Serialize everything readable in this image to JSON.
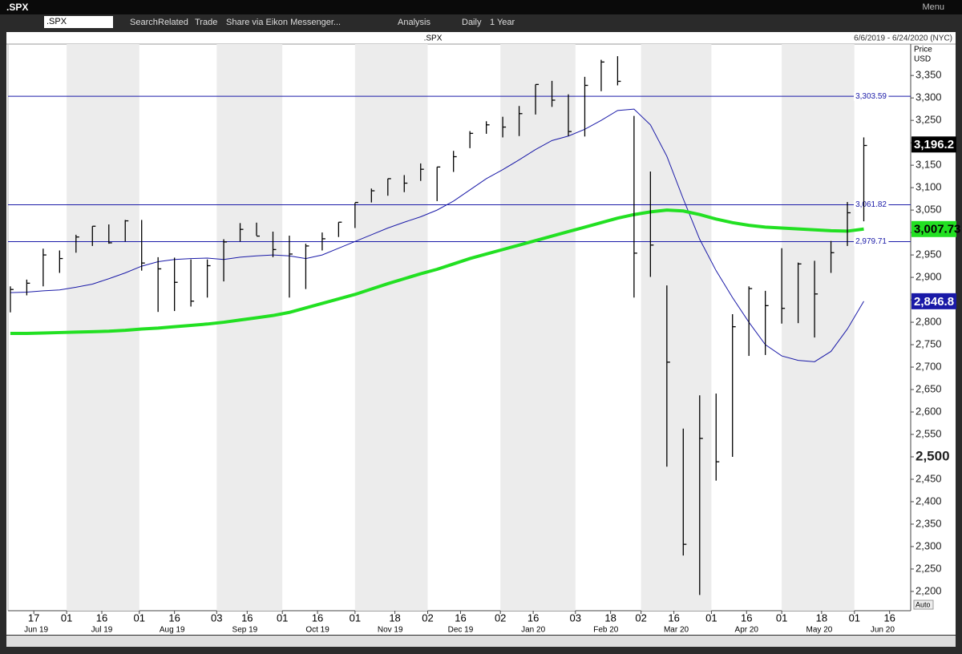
{
  "window": {
    "title": ".SPX",
    "menu": "Menu"
  },
  "toolbar": {
    "symbol": ".SPX",
    "search": "Search",
    "related": "Related",
    "trade": "Trade",
    "share": "Share via Eikon Messenger...",
    "analysis": "Analysis",
    "interval": "Daily",
    "period": "1 Year"
  },
  "chart_data": {
    "type": "ohlc",
    "title": ".SPX",
    "subtitle": "6/6/2019 - 6/24/2020 (NYC)",
    "y_label": "Price",
    "y_unit": "USD",
    "autoscale": "Auto",
    "xlim": [
      "2019-06-06",
      "2020-06-25"
    ],
    "ylim": [
      2157,
      3420
    ],
    "x": [
      "2019-06-07",
      "2019-06-14",
      "2019-06-21",
      "2019-06-28",
      "2019-07-05",
      "2019-07-12",
      "2019-07-19",
      "2019-07-26",
      "2019-08-02",
      "2019-08-09",
      "2019-08-16",
      "2019-08-23",
      "2019-08-30",
      "2019-09-06",
      "2019-09-13",
      "2019-09-20",
      "2019-09-27",
      "2019-10-04",
      "2019-10-11",
      "2019-10-18",
      "2019-10-25",
      "2019-11-01",
      "2019-11-08",
      "2019-11-15",
      "2019-11-22",
      "2019-11-29",
      "2019-12-06",
      "2019-12-13",
      "2019-12-20",
      "2019-12-27",
      "2020-01-03",
      "2020-01-10",
      "2020-01-17",
      "2020-01-24",
      "2020-01-31",
      "2020-02-07",
      "2020-02-14",
      "2020-02-21",
      "2020-02-28",
      "2020-03-06",
      "2020-03-13",
      "2020-03-20",
      "2020-03-27",
      "2020-04-03",
      "2020-04-10",
      "2020-04-17",
      "2020-04-24",
      "2020-05-01",
      "2020-05-08",
      "2020-05-15",
      "2020-05-22",
      "2020-05-29",
      "2020-06-05"
    ],
    "high": [
      2880,
      2895,
      2964,
      2960,
      2995,
      3014,
      3018,
      3028,
      3028,
      2945,
      2944,
      2940,
      2940,
      2985,
      3021,
      3022,
      3002,
      2993,
      2975,
      3000,
      3023,
      3066,
      3098,
      3120,
      3128,
      3154,
      3146,
      3182,
      3226,
      3248,
      3258,
      3282,
      3330,
      3338,
      3308,
      3347,
      3385,
      3393,
      3260,
      3136,
      2882,
      2563,
      2637,
      2641,
      2818,
      2880,
      2870,
      2965,
      2933,
      2937,
      2981,
      3068,
      3212
    ],
    "low": [
      2822,
      2860,
      2880,
      2910,
      2955,
      2970,
      2975,
      2980,
      2915,
      2823,
      2825,
      2835,
      2855,
      2891,
      2980,
      2993,
      2945,
      2855,
      2874,
      2960,
      2990,
      3010,
      3067,
      3082,
      3090,
      3115,
      3070,
      3135,
      3188,
      3220,
      3212,
      3215,
      3263,
      3280,
      3215,
      3214,
      3315,
      3328,
      2855,
      2901,
      2478,
      2280,
      2192,
      2447,
      2500,
      2725,
      2727,
      2797,
      2798,
      2766,
      2910,
      2970,
      3025
    ],
    "close": [
      2873,
      2887,
      2950,
      2942,
      2990,
      3014,
      2977,
      3026,
      2932,
      2919,
      2889,
      2847,
      2926,
      2979,
      3007,
      2992,
      2962,
      2952,
      2970,
      2986,
      3023,
      3067,
      3093,
      3120,
      3110,
      3141,
      3146,
      3169,
      3221,
      3240,
      3235,
      3265,
      3330,
      3295,
      3225,
      3328,
      3380,
      3337,
      2954,
      2972,
      2711,
      2305,
      2541,
      2489,
      2790,
      2875,
      2837,
      2831,
      2930,
      2863,
      2955,
      3044,
      3194
    ],
    "bar_color": "#000000",
    "series": [
      {
        "name": "MA 50",
        "color": "#1a1aa8",
        "width": 1,
        "values": [
          2866,
          2867,
          2870,
          2872,
          2878,
          2885,
          2897,
          2910,
          2925,
          2935,
          2940,
          2942,
          2943,
          2940,
          2945,
          2948,
          2950,
          2948,
          2942,
          2950,
          2965,
          2980,
          2995,
          3010,
          3023,
          3035,
          3050,
          3070,
          3095,
          3120,
          3140,
          3162,
          3185,
          3205,
          3215,
          3230,
          3250,
          3272,
          3275,
          3240,
          3170,
          3075,
          2985,
          2915,
          2855,
          2800,
          2750,
          2725,
          2715,
          2712,
          2735,
          2785,
          2846.8
        ],
        "last": {
          "value": 2846.8,
          "label": "2,846.8"
        }
      },
      {
        "name": "MA 200",
        "color": "#22e022",
        "width": 4,
        "values": [
          2775,
          2775,
          2776,
          2777,
          2778,
          2779,
          2780,
          2782,
          2785,
          2787,
          2790,
          2793,
          2796,
          2800,
          2805,
          2810,
          2815,
          2822,
          2832,
          2842,
          2852,
          2862,
          2874,
          2886,
          2897,
          2908,
          2918,
          2930,
          2942,
          2952,
          2962,
          2972,
          2982,
          2992,
          3002,
          3012,
          3022,
          3032,
          3040,
          3046,
          3050,
          3048,
          3040,
          3030,
          3022,
          3016,
          3012,
          3010,
          3008,
          3006,
          3004,
          3003,
          3007.73
        ],
        "last": {
          "value": 3007.73,
          "label": "3,007.73"
        }
      }
    ],
    "last_price": {
      "value": 3196.2,
      "label": "3,196.2"
    },
    "hlines": [
      {
        "value": 3303.59,
        "label": "3,303.59"
      },
      {
        "value": 3061.82,
        "label": "3,061.82"
      },
      {
        "value": 2979.71,
        "label": "2,979.71"
      }
    ],
    "hline_color": "#1a1aa8",
    "emphasized_tick": 2500,
    "yticks": [
      {
        "value": 2200,
        "label": "2,200"
      },
      {
        "value": 2250,
        "label": "2,250"
      },
      {
        "value": 2300,
        "label": "2,300"
      },
      {
        "value": 2350,
        "label": "2,350"
      },
      {
        "value": 2400,
        "label": "2,400"
      },
      {
        "value": 2450,
        "label": "2,450"
      },
      {
        "value": 2500,
        "label": "2,500"
      },
      {
        "value": 2550,
        "label": "2,550"
      },
      {
        "value": 2600,
        "label": "2,600"
      },
      {
        "value": 2650,
        "label": "2,650"
      },
      {
        "value": 2700,
        "label": "2,700"
      },
      {
        "value": 2750,
        "label": "2,750"
      },
      {
        "value": 2800,
        "label": "2,800"
      },
      {
        "value": 2850,
        "label": "2,850"
      },
      {
        "value": 2900,
        "label": "2,900"
      },
      {
        "value": 2950,
        "label": "2,950"
      },
      {
        "value": 3000,
        "label": "3,000"
      },
      {
        "value": 3050,
        "label": "3,050"
      },
      {
        "value": 3100,
        "label": "3,100"
      },
      {
        "value": 3150,
        "label": "3,150"
      },
      {
        "value": 3200,
        "label": "3,200"
      },
      {
        "value": 3250,
        "label": "3,250"
      },
      {
        "value": 3300,
        "label": "3,300"
      },
      {
        "value": 3350,
        "label": "3,350"
      }
    ],
    "xticks": [
      {
        "value": "2019-06-17",
        "label": "17"
      },
      {
        "value": "2019-07-01",
        "label": "01"
      },
      {
        "value": "2019-07-16",
        "label": "16"
      },
      {
        "value": "2019-08-01",
        "label": "01"
      },
      {
        "value": "2019-08-16",
        "label": "16"
      },
      {
        "value": "2019-09-03",
        "label": "03"
      },
      {
        "value": "2019-09-16",
        "label": "16"
      },
      {
        "value": "2019-10-01",
        "label": "01"
      },
      {
        "value": "2019-10-16",
        "label": "16"
      },
      {
        "value": "2019-11-01",
        "label": "01"
      },
      {
        "value": "2019-11-18",
        "label": "18"
      },
      {
        "value": "2019-12-02",
        "label": "02"
      },
      {
        "value": "2019-12-16",
        "label": "16"
      },
      {
        "value": "2020-01-02",
        "label": "02"
      },
      {
        "value": "2020-01-16",
        "label": "16"
      },
      {
        "value": "2020-02-03",
        "label": "03"
      },
      {
        "value": "2020-02-18",
        "label": "18"
      },
      {
        "value": "2020-03-02",
        "label": "02"
      },
      {
        "value": "2020-03-16",
        "label": "16"
      },
      {
        "value": "2020-04-01",
        "label": "01"
      },
      {
        "value": "2020-04-16",
        "label": "16"
      },
      {
        "value": "2020-05-01",
        "label": "01"
      },
      {
        "value": "2020-05-18",
        "label": "18"
      },
      {
        "value": "2020-06-01",
        "label": "01"
      },
      {
        "value": "2020-06-16",
        "label": "16"
      }
    ],
    "month_labels": [
      {
        "value": "2019-06-18",
        "label": "Jun 19"
      },
      {
        "value": "2019-07-16",
        "label": "Jul 19"
      },
      {
        "value": "2019-08-15",
        "label": "Aug 19"
      },
      {
        "value": "2019-09-15",
        "label": "Sep 19"
      },
      {
        "value": "2019-10-16",
        "label": "Oct 19"
      },
      {
        "value": "2019-11-16",
        "label": "Nov 19"
      },
      {
        "value": "2019-12-16",
        "label": "Dec 19"
      },
      {
        "value": "2020-01-16",
        "label": "Jan 20"
      },
      {
        "value": "2020-02-16",
        "label": "Feb 20"
      },
      {
        "value": "2020-03-17",
        "label": "Mar 20"
      },
      {
        "value": "2020-04-16",
        "label": "Apr 20"
      },
      {
        "value": "2020-05-17",
        "label": "May 20"
      },
      {
        "value": "2020-06-13",
        "label": "Jun 20"
      }
    ]
  }
}
